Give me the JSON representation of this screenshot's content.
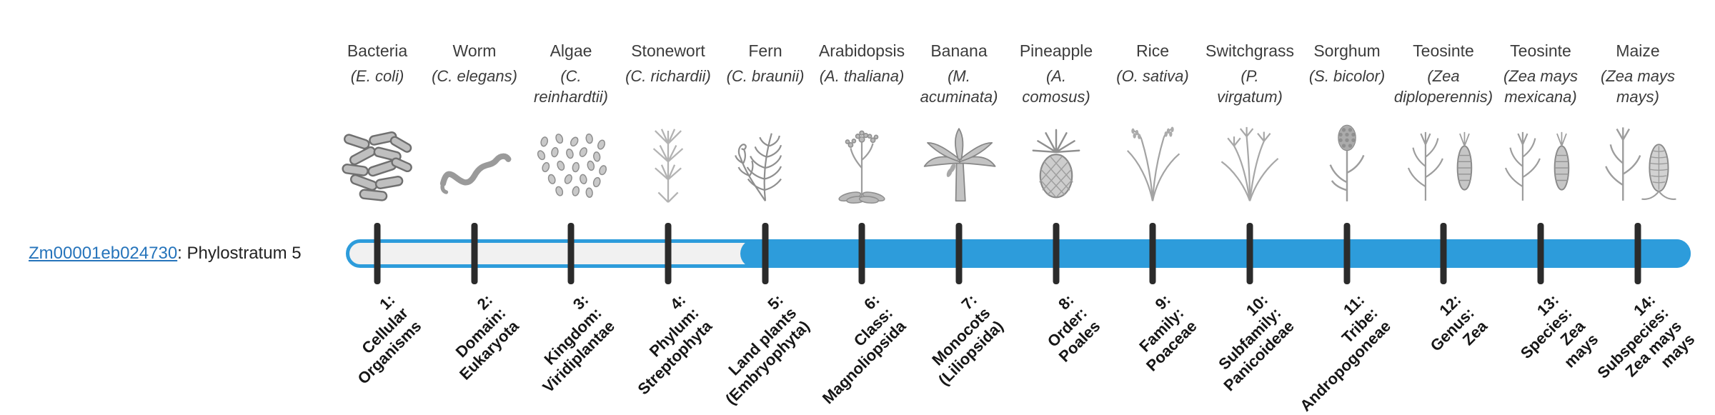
{
  "gene": {
    "id": "Zm00001eb024730",
    "suffix": ": Phylostratum 5"
  },
  "colors": {
    "bar_fill": "#2D9CDB",
    "bar_empty": "#f1f1f1",
    "tick": "#2b2b2b",
    "link": "#2674bb"
  },
  "bar": {
    "total_strata": 14,
    "fill_start_stratum": 5
  },
  "organisms": [
    {
      "name": "Bacteria",
      "sci": "(E. coli)",
      "icon": "bacteria-icon"
    },
    {
      "name": "Worm",
      "sci": "(C. elegans)",
      "icon": "worm-icon"
    },
    {
      "name": "Algae",
      "sci": "(C.\nreinhardtii)",
      "icon": "algae-icon"
    },
    {
      "name": "Stonewort",
      "sci": "(C. richardii)",
      "icon": "stonewort-icon"
    },
    {
      "name": "Fern",
      "sci": "(C. braunii)",
      "icon": "fern-icon"
    },
    {
      "name": "Arabidopsis",
      "sci": "(A. thaliana)",
      "icon": "arabidopsis-icon"
    },
    {
      "name": "Banana",
      "sci": "(M.\nacuminata)",
      "icon": "banana-icon"
    },
    {
      "name": "Pineapple",
      "sci": "(A.\ncomosus)",
      "icon": "pineapple-icon"
    },
    {
      "name": "Rice",
      "sci": "(O. sativa)",
      "icon": "rice-icon"
    },
    {
      "name": "Switchgrass",
      "sci": "(P.\nvirgatum)",
      "icon": "switchgrass-icon"
    },
    {
      "name": "Sorghum",
      "sci": "(S. bicolor)",
      "icon": "sorghum-icon"
    },
    {
      "name": "Teosinte",
      "sci": "(Zea\ndiploperennis)",
      "icon": "teosinte-icon"
    },
    {
      "name": "Teosinte",
      "sci": "(Zea mays\nmexicana)",
      "icon": "teosinte-icon"
    },
    {
      "name": "Maize",
      "sci": "(Zea mays\nmays)",
      "icon": "maize-icon"
    }
  ],
  "phylostrata": [
    {
      "label": "1:\nCellular\nOrganisms"
    },
    {
      "label": "2:\nDomain:\nEukaryota"
    },
    {
      "label": "3:\nKingdom:\nViridiplantae"
    },
    {
      "label": "4:\nPhylum:\nStreptophyta"
    },
    {
      "label": "5:\nLand plants\n(Embryophyta)"
    },
    {
      "label": "6:\nClass:\nMagnoliopsida"
    },
    {
      "label": "7:\nMonocots\n(Liliopsida)"
    },
    {
      "label": "8:\nOrder:\nPoales"
    },
    {
      "label": "9:\nFamily:\nPoaceae"
    },
    {
      "label": "10:\nSubfamily:\nPanicoideae"
    },
    {
      "label": "11:\nTribe:\nAndropogoneae"
    },
    {
      "label": "12:\nGenus:\nZea"
    },
    {
      "label": "13:\nSpecies:\nZea\nmays"
    },
    {
      "label": "14:\nSubspecies:\nZea mays\nmays"
    }
  ]
}
